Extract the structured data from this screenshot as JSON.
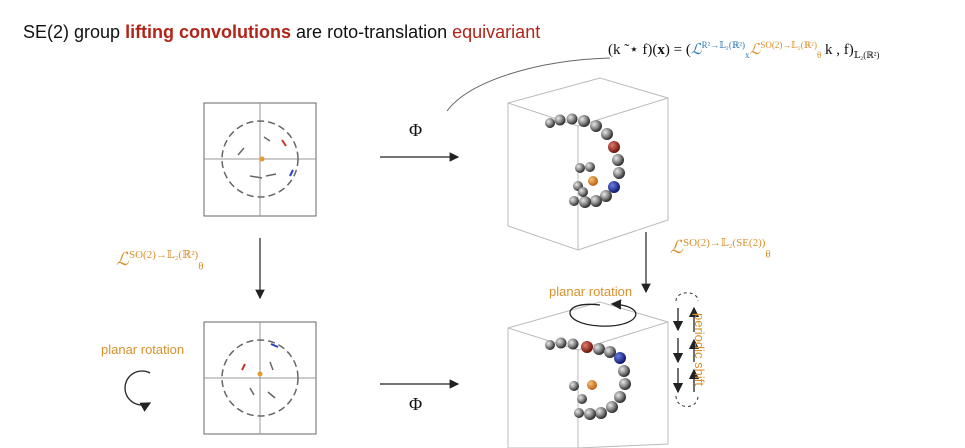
{
  "title": {
    "prefix": "SE(2) group ",
    "bold": "lifting convolutions",
    "middle": " are ",
    "plain": "roto-translation",
    "suffix": " equivariant"
  },
  "formula": {
    "lhs": "(k ",
    "star": "˜⋆",
    "lhs2": " f)(",
    "x": "x",
    "eq": ") = (",
    "l1": "ℒ",
    "l1_sup": "R²→𝕃₂(ℝ²)",
    "l1_sub": "x",
    "l2": "ℒ",
    "l2_sup": "SO(2)→𝕃₂(ℝ²)",
    "l2_sub": "θ",
    "rest": " k , f)",
    "rest_sub": "𝕃₂(ℝ²)"
  },
  "operator_left": {
    "symbol": "ℒ",
    "sup": "SO(2)→𝕃₂(ℝ²)",
    "sub": "θ"
  },
  "operator_right": {
    "symbol": "ℒ",
    "sup": "SO(2)→𝕃₂(SE(2))",
    "sub": "θ"
  },
  "phi_top": "Φ",
  "phi_bottom": "Φ",
  "planar_rotation_left": "planar rotation",
  "planar_rotation_right": "planar rotation",
  "periodic_shift": "periodic shift",
  "colors": {
    "accent_red": "#b22418",
    "accent_orange": "#d9902b",
    "accent_blue": "#2c7bb0"
  }
}
